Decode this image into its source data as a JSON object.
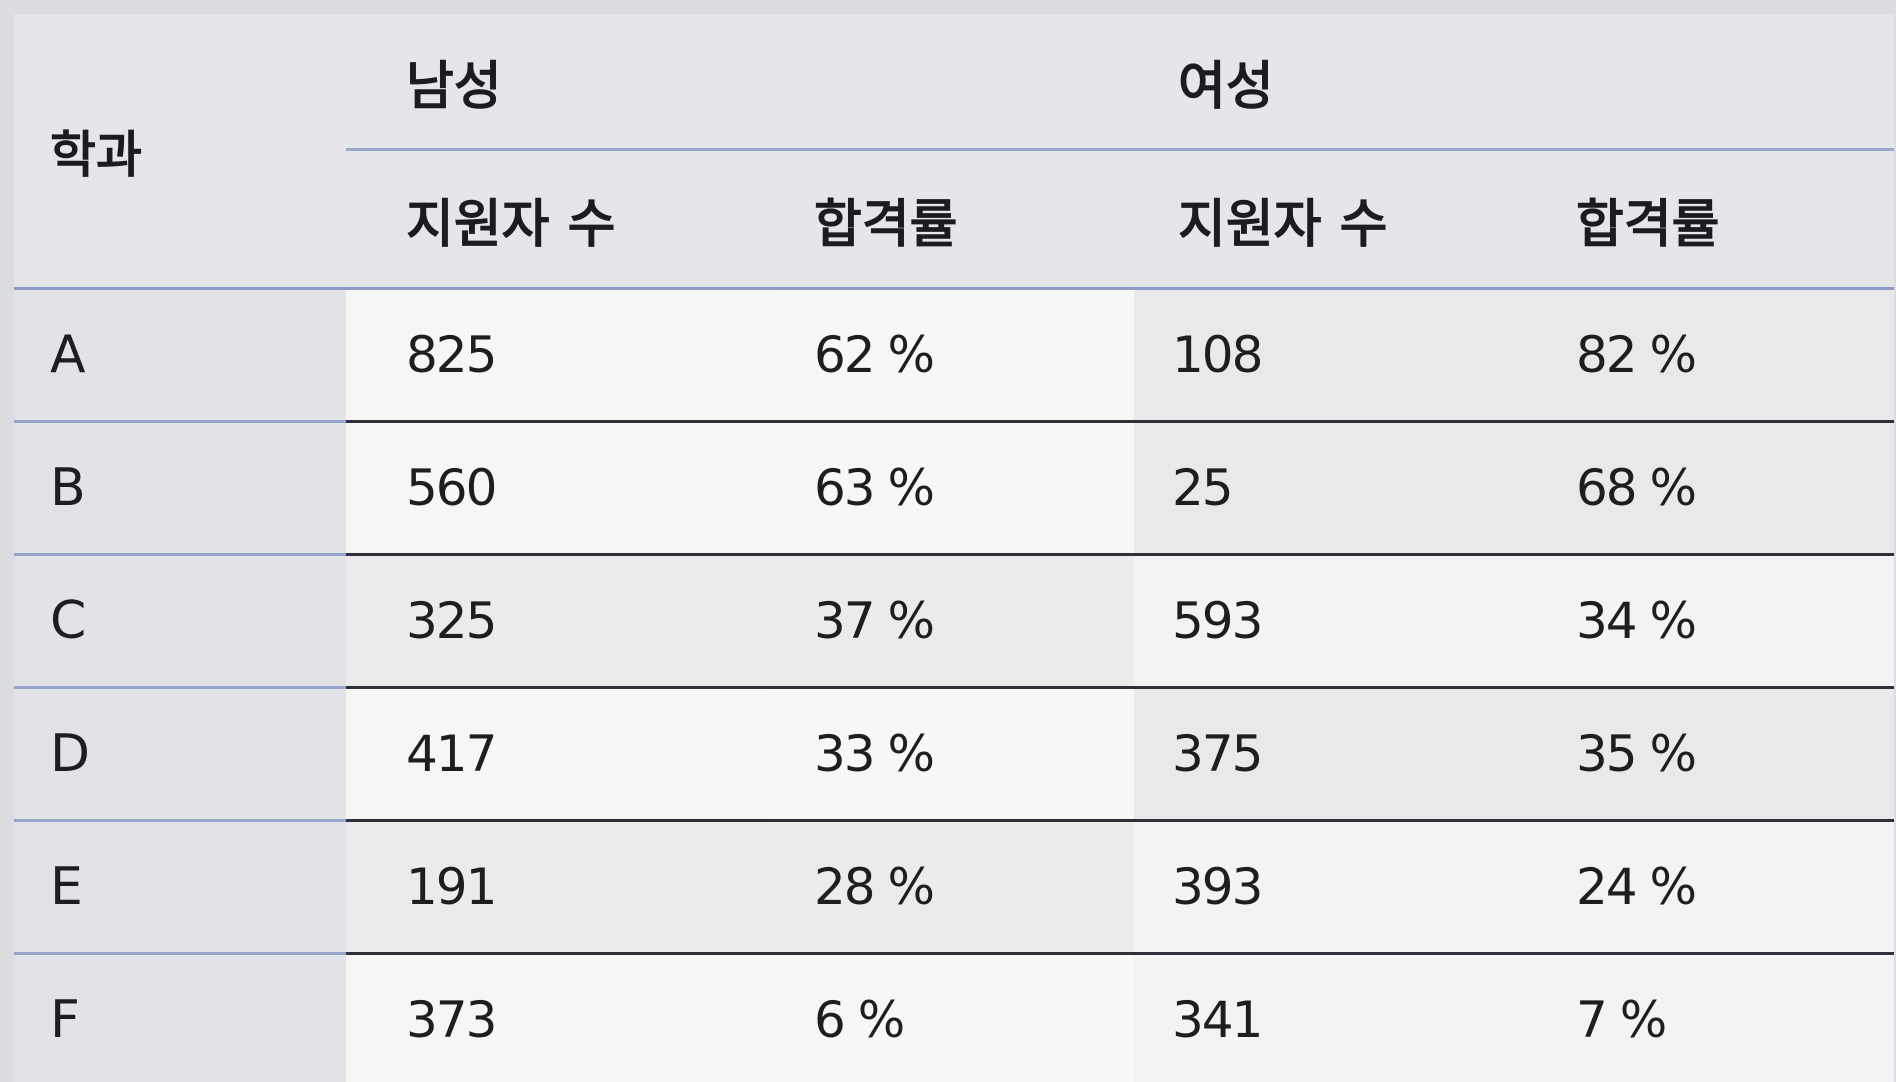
{
  "table": {
    "header": {
      "department": "학과",
      "groups": {
        "male": "남성",
        "female": "여성"
      },
      "sub_columns": {
        "male_applicants": "지원자 수",
        "male_rate": "합격률",
        "female_applicants": "지원자 수",
        "female_rate": "합격률"
      }
    },
    "rows": [
      {
        "dept": "A",
        "male_applicants": "825",
        "male_rate": "62 %",
        "female_applicants": "108",
        "female_rate": "82 %"
      },
      {
        "dept": "B",
        "male_applicants": "560",
        "male_rate": "63 %",
        "female_applicants": "25",
        "female_rate": "68 %"
      },
      {
        "dept": "C",
        "male_applicants": "325",
        "male_rate": "37 %",
        "female_applicants": "593",
        "female_rate": "34 %"
      },
      {
        "dept": "D",
        "male_applicants": "417",
        "male_rate": "33 %",
        "female_applicants": "375",
        "female_rate": "35 %"
      },
      {
        "dept": "E",
        "male_applicants": "191",
        "male_rate": "28 %",
        "female_applicants": "393",
        "female_rate": "24 %"
      },
      {
        "dept": "F",
        "male_applicants": "373",
        "male_rate": "6 %",
        "female_applicants": "341",
        "female_rate": "7 %"
      }
    ]
  }
}
